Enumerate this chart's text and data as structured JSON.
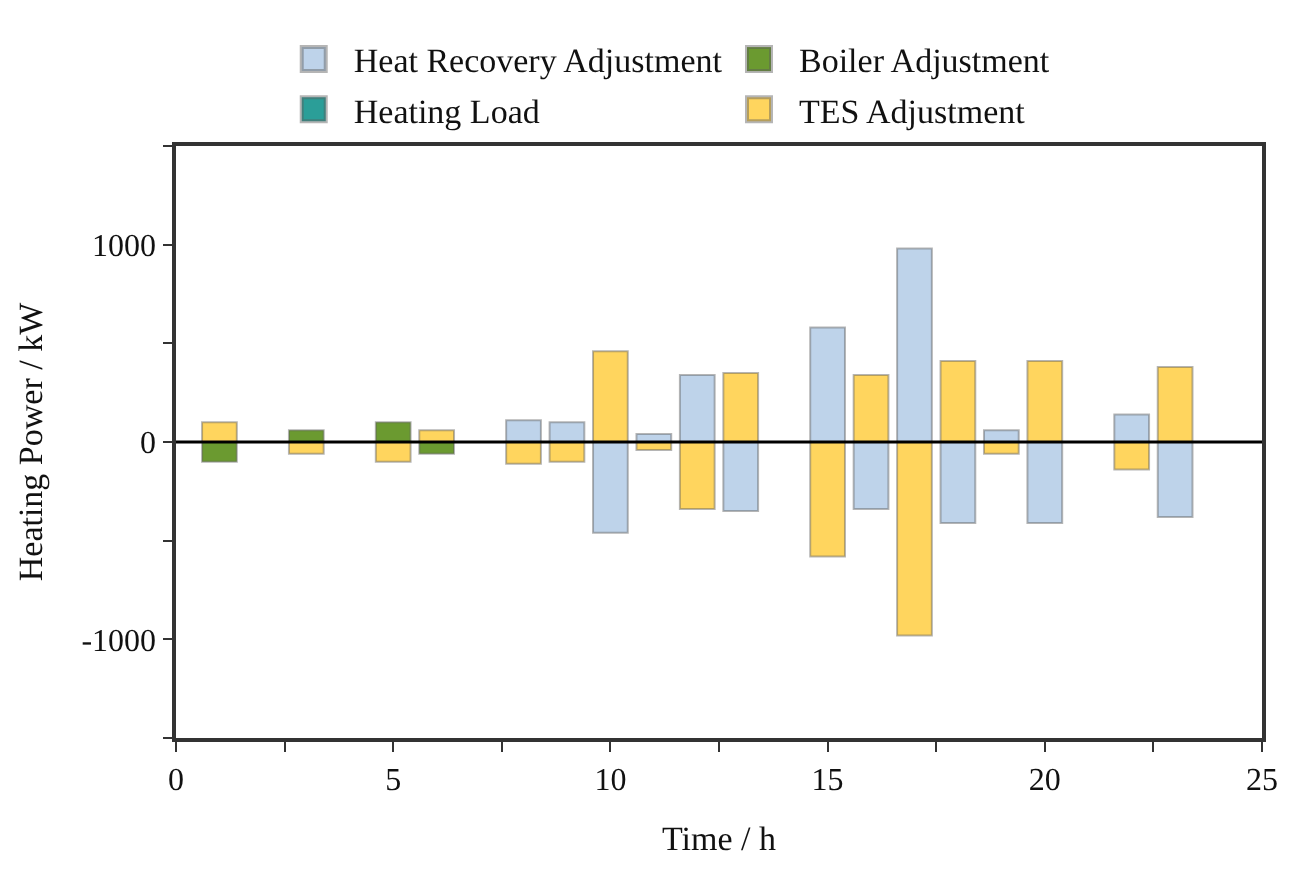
{
  "chart_data": {
    "type": "bar",
    "xlabel": "Time / h",
    "ylabel": "Heating Power / kW",
    "x": [
      1,
      3,
      5,
      6,
      8,
      9,
      10,
      11,
      12,
      13,
      15,
      16,
      17,
      18,
      19,
      20,
      22,
      23
    ],
    "series": [
      {
        "name": "Heat Recovery Adjustment",
        "color": "#bed3ea",
        "values": [
          null,
          null,
          null,
          null,
          110,
          100,
          -460,
          40,
          340,
          -350,
          580,
          -340,
          980,
          -410,
          60,
          -410,
          140,
          -380
        ]
      },
      {
        "name": "Boiler Adjustment",
        "color": "#6b9a30",
        "values": [
          -100,
          60,
          100,
          -60,
          null,
          null,
          null,
          null,
          null,
          null,
          null,
          null,
          null,
          null,
          null,
          null,
          null,
          null
        ]
      },
      {
        "name": "Heating Load",
        "color": "#2b9e98",
        "values": [
          null,
          null,
          null,
          null,
          null,
          null,
          null,
          null,
          null,
          null,
          null,
          null,
          null,
          null,
          null,
          null,
          null,
          null
        ]
      },
      {
        "name": "TES Adjustment",
        "color": "#ffd55e",
        "values": [
          100,
          -60,
          -100,
          60,
          -110,
          -100,
          460,
          -40,
          -340,
          350,
          -580,
          340,
          -980,
          410,
          -60,
          410,
          -140,
          380
        ]
      }
    ],
    "xlim": [
      0,
      25
    ],
    "xticks": [
      0,
      {
        "value": 2.5,
        "label": null
      },
      5,
      {
        "value": 7.5,
        "label": null
      },
      10,
      {
        "value": 12.5,
        "label": null
      },
      15,
      {
        "value": 17.5,
        "label": null
      },
      20,
      {
        "value": 22.5,
        "label": null
      },
      25
    ],
    "ylim": [
      -1500,
      1500
    ],
    "yticks": [
      {
        "value": -1500,
        "label": null
      },
      -1000,
      {
        "value": -500,
        "label": null
      },
      0,
      {
        "value": 500,
        "label": null
      },
      1000,
      {
        "value": 1500,
        "label": null
      }
    ],
    "ref_lines": [
      {
        "axis": "y",
        "value": 0,
        "label": null,
        "color": "#000000"
      }
    ],
    "legend": "top",
    "stacked": true
  }
}
